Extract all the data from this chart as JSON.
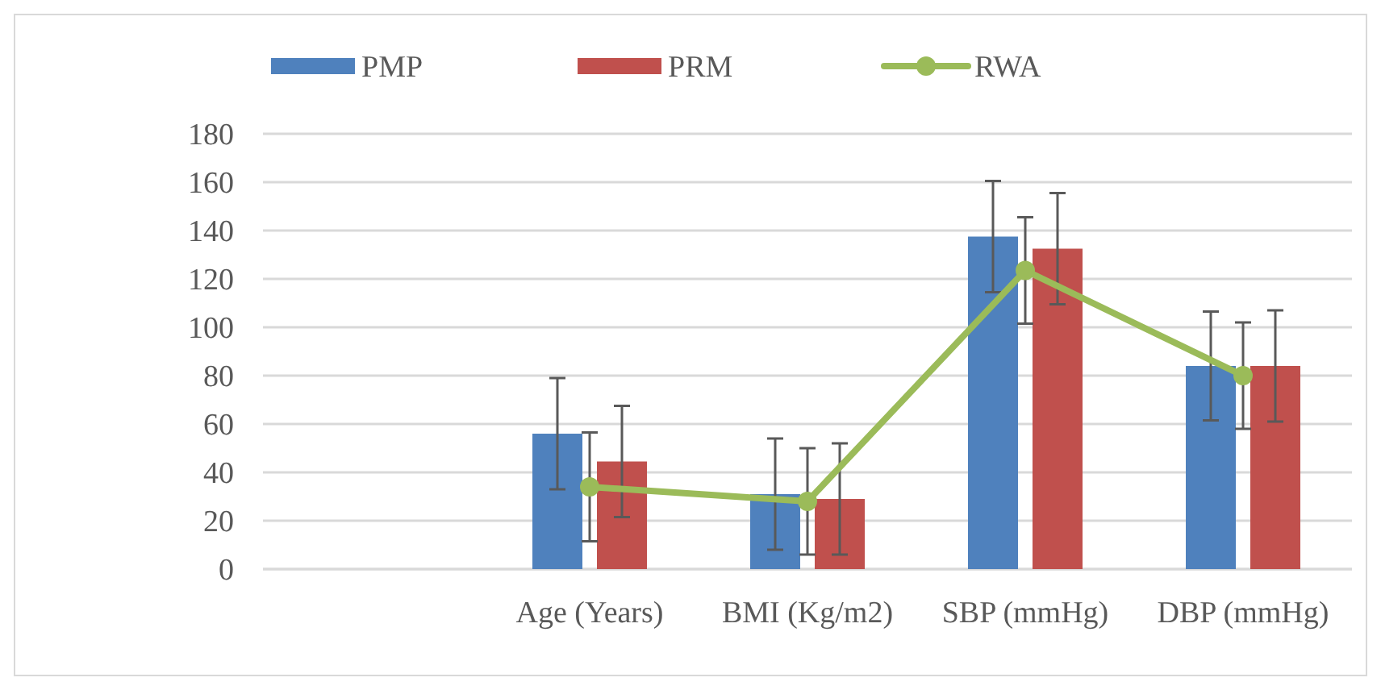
{
  "chart_data": {
    "type": "bar",
    "categories": [
      null,
      "Age (Years)",
      "BMI (Kg/m2)",
      "SBP (mmHg)",
      "DBP (mmHg)"
    ],
    "series": [
      {
        "name": "PMP",
        "color": "#4f81bd",
        "values": [
          null,
          56,
          31,
          137.5,
          84
        ],
        "errors": [
          null,
          23,
          23,
          23,
          22.5
        ]
      },
      {
        "name": "PRM",
        "color": "#c0504d",
        "values": [
          null,
          44.5,
          29,
          132.5,
          84
        ],
        "errors": [
          null,
          23,
          23,
          23,
          23
        ]
      },
      {
        "name": "RWA",
        "type": "line",
        "color": "#9bbb59",
        "marker": "circle",
        "values": [
          null,
          34,
          28,
          123.5,
          80
        ],
        "errors": [
          null,
          22.5,
          22,
          22,
          22
        ]
      }
    ],
    "ylim": [
      0,
      180
    ],
    "yticks": [
      0,
      20,
      40,
      60,
      80,
      100,
      120,
      140,
      160,
      180
    ],
    "grid": "y",
    "legend": "top"
  }
}
